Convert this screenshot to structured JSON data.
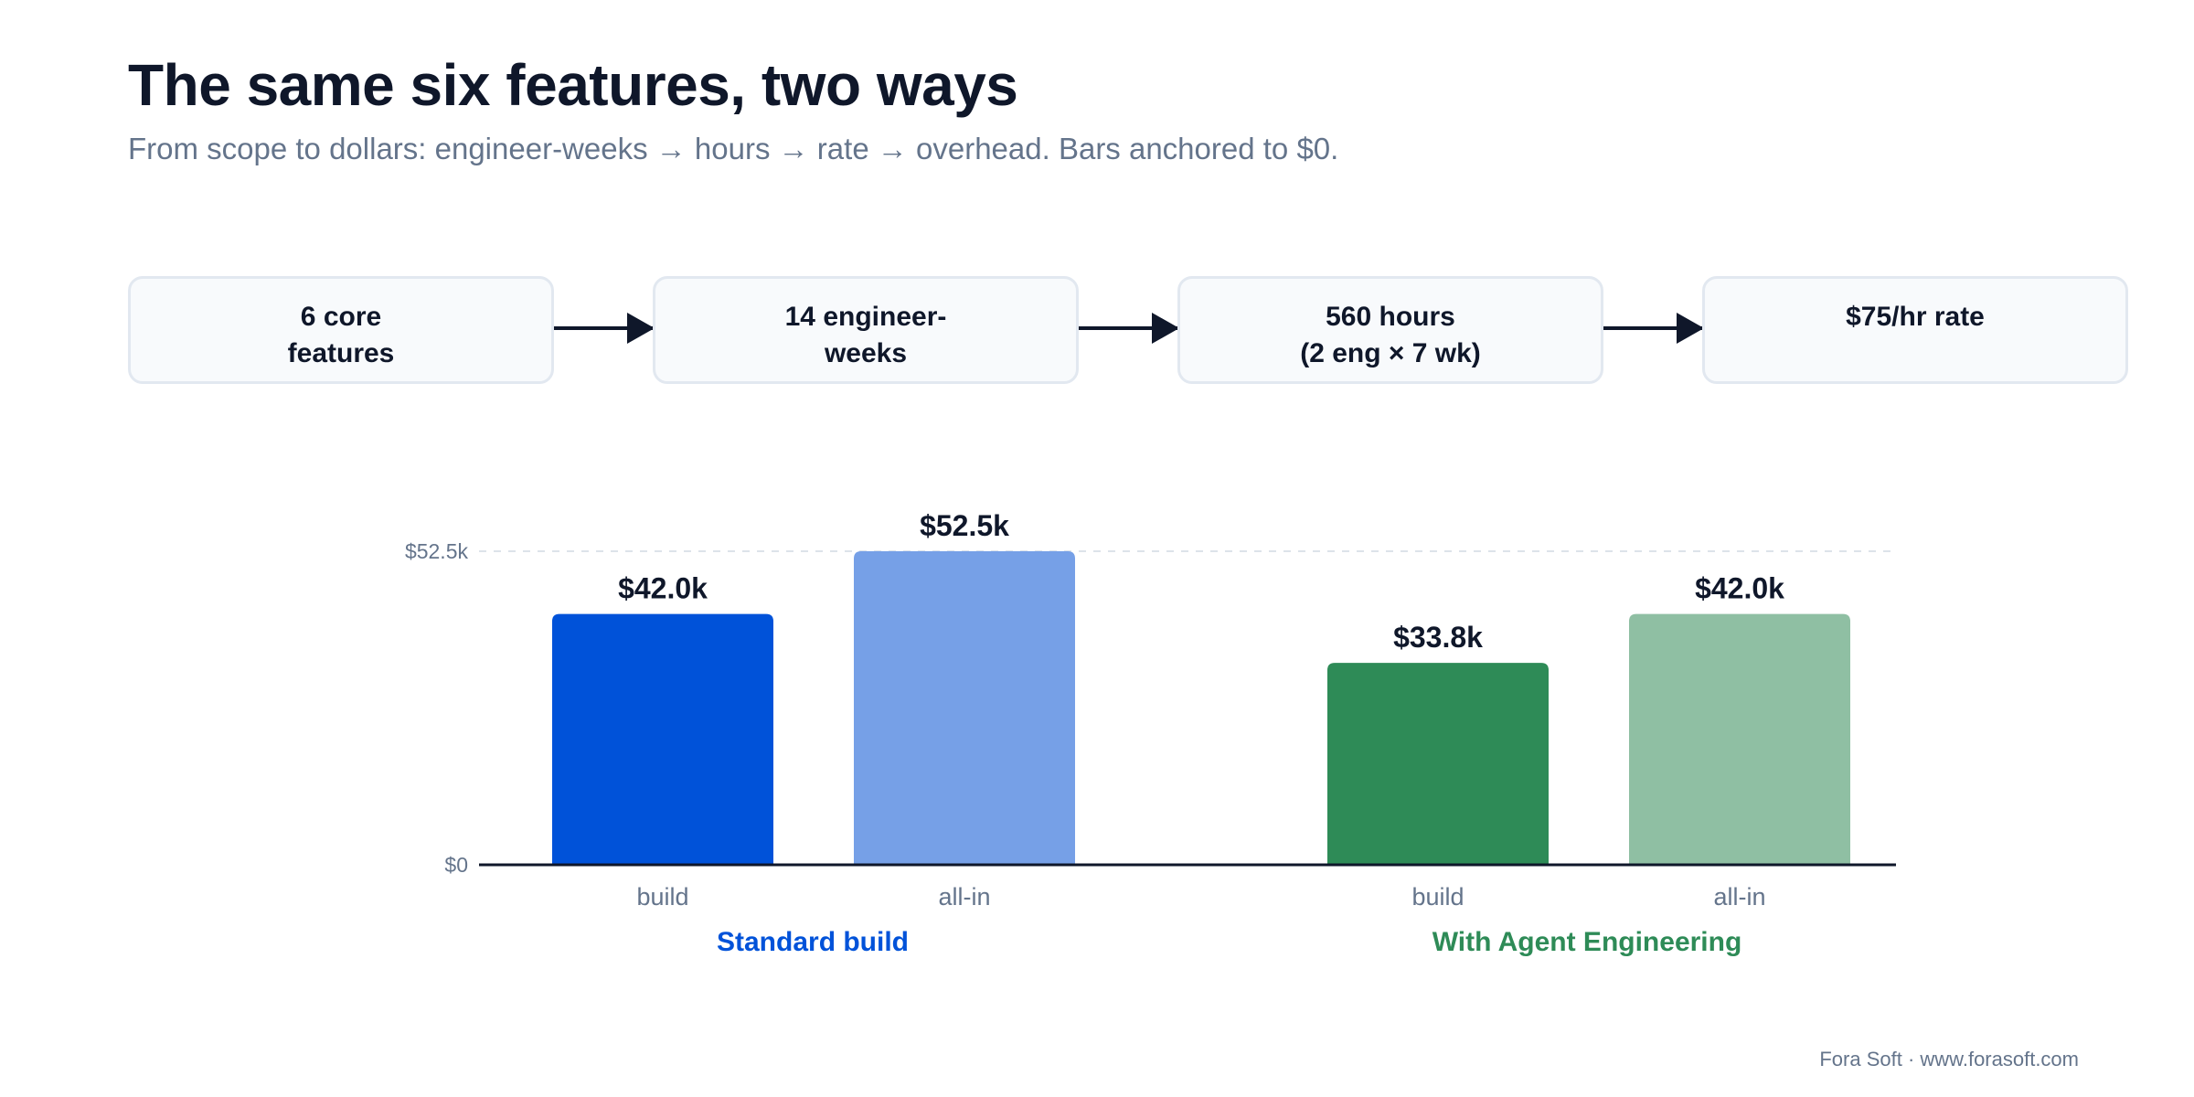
{
  "header": {
    "title": "The same six features, two ways",
    "subtitle": "From scope to dollars: engineer-weeks → hours → rate → overhead. Bars anchored to $0."
  },
  "flow": {
    "steps": [
      {
        "label": "6 core\nfeatures"
      },
      {
        "label": "14 engineer-\nweeks"
      },
      {
        "label": "560 hours\n(2 eng × 7 wk)"
      },
      {
        "label": "$75/hr rate"
      }
    ]
  },
  "chart_data": {
    "type": "bar",
    "y_unit": "USD (thousands)",
    "ylim": [
      0,
      52.5
    ],
    "y_ticks": [
      {
        "value": 0,
        "label": "$0"
      },
      {
        "value": 52.5,
        "label": "$52.5k"
      }
    ],
    "grid": "dashed reference line at $52.5k",
    "groups": [
      {
        "name": "Standard build",
        "color": "#0052d9",
        "bars": [
          {
            "category": "build",
            "value": 42.0,
            "label": "$42.0k",
            "color": "#0052d9"
          },
          {
            "category": "all-in",
            "value": 52.5,
            "label": "$52.5k",
            "color": "#76a0e7"
          }
        ]
      },
      {
        "name": "With Agent Engineering",
        "color": "#2e8b57",
        "bars": [
          {
            "category": "build",
            "value": 33.8,
            "label": "$33.8k",
            "color": "#2e8b57"
          },
          {
            "category": "all-in",
            "value": 42.0,
            "label": "$42.0k",
            "color": "#8fbfa3"
          }
        ]
      }
    ]
  },
  "footer": {
    "credit": "Fora Soft · www.forasoft.com"
  },
  "colors": {
    "text": "#0f172a",
    "muted": "#64748b",
    "axis": "#0f172a",
    "grid": "#dde3ea"
  }
}
